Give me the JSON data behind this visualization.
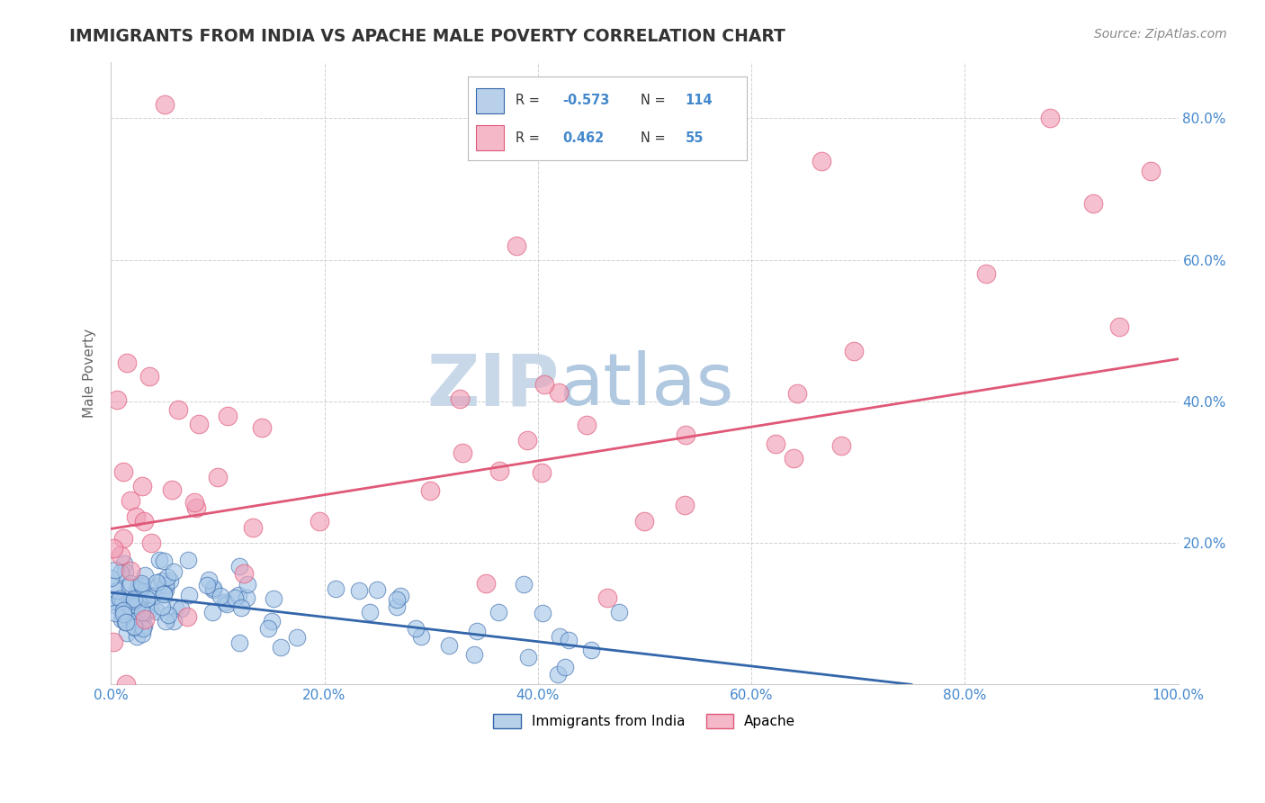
{
  "title": "IMMIGRANTS FROM INDIA VS APACHE MALE POVERTY CORRELATION CHART",
  "source": "Source: ZipAtlas.com",
  "ylabel": "Male Poverty",
  "xlim": [
    0.0,
    1.0
  ],
  "ylim": [
    0.0,
    0.88
  ],
  "x_ticks": [
    0.0,
    0.2,
    0.4,
    0.6,
    0.8,
    1.0
  ],
  "x_tick_labels": [
    "0.0%",
    "20.0%",
    "40.0%",
    "60.0%",
    "80.0%",
    "100.0%"
  ],
  "y_ticks": [
    0.0,
    0.2,
    0.4,
    0.6,
    0.8
  ],
  "y_tick_labels": [
    "",
    "20.0%",
    "40.0%",
    "60.0%",
    "80.0%"
  ],
  "blue_line_x": [
    0.0,
    0.75
  ],
  "blue_line_y": [
    0.13,
    0.0
  ],
  "pink_line_x": [
    0.0,
    1.0
  ],
  "pink_line_y": [
    0.22,
    0.46
  ],
  "blue_scatter_color": "#a8c8e8",
  "pink_scatter_color": "#f0a0b8",
  "blue_line_color": "#3366aa",
  "pink_line_color": "#e05878",
  "blue_legend_color": "#b8d0ea",
  "pink_legend_color": "#f4b8c8",
  "watermark_zip_color": "#c8d8e8",
  "watermark_atlas_color": "#b0c8e0",
  "background_color": "#ffffff",
  "grid_color": "#d0d0d0",
  "title_color": "#333333",
  "axis_label_color": "#666666",
  "tick_color": "#4488cc",
  "source_color": "#888888",
  "legend_label_blue": "Immigrants from India",
  "legend_label_pink": "Apache"
}
